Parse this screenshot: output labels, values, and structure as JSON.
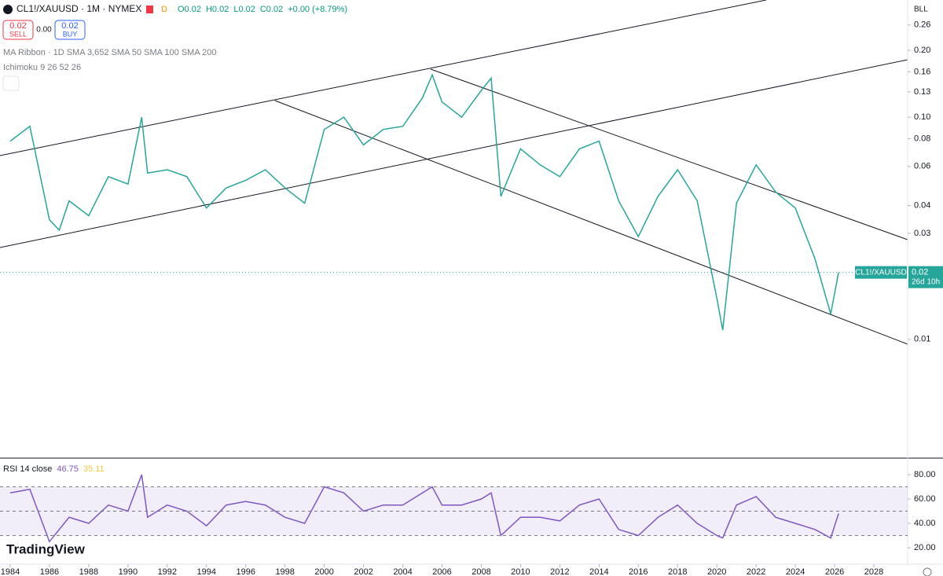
{
  "header": {
    "symbol": "CL1!/XAUUSD · 1M · NYMEX",
    "flag": "D",
    "ohlc": [
      "O0.02",
      "H0.02",
      "L0.02",
      "C0.02",
      "+0.00 (+8.79%)"
    ],
    "sell_price": "0.02",
    "sell": "SELL",
    "spread": "0.00",
    "buy_price": "0.02",
    "buy": "BUY",
    "indicators": [
      "MA Ribbon · 1D SMA 3,652 SMA 50 SMA 100 SMA 200",
      "Ichimoku 9 26 52 26"
    ],
    "axis_unit": "BLL",
    "price_tag": {
      "symbol": "CL1!/XAUUSD",
      "price": "0.02",
      "countdown": "26d 10h"
    },
    "logo": "TradingView"
  },
  "chart_data": [
    {
      "type": "line",
      "log_y": true,
      "color": "#26a69a",
      "x": [
        1984,
        1985,
        1986,
        1986.5,
        1987,
        1988,
        1989,
        1990,
        1990.7,
        1991,
        1992,
        1993,
        1994,
        1995,
        1996,
        1997,
        1998,
        1999,
        2000,
        2001,
        2002,
        2003,
        2004,
        2005,
        2005.5,
        2006,
        2007,
        2008,
        2008.5,
        2009,
        2010,
        2011,
        2012,
        2013,
        2014,
        2015,
        2016,
        2017,
        2018,
        2019,
        2020,
        2020.3,
        2021,
        2022,
        2023,
        2024,
        2025,
        2025.8,
        2026.2
      ],
      "values": [
        0.078,
        0.091,
        0.0345,
        0.031,
        0.042,
        0.036,
        0.054,
        0.05,
        0.1,
        0.056,
        0.058,
        0.054,
        0.039,
        0.048,
        0.052,
        0.058,
        0.048,
        0.041,
        0.088,
        0.1,
        0.075,
        0.088,
        0.091,
        0.122,
        0.155,
        0.117,
        0.1,
        0.132,
        0.15,
        0.044,
        0.072,
        0.061,
        0.054,
        0.072,
        0.078,
        0.042,
        0.029,
        0.044,
        0.058,
        0.042,
        0.0153,
        0.011,
        0.041,
        0.061,
        0.046,
        0.039,
        0.023,
        0.013,
        0.02
      ],
      "xlim": [
        1983.48,
        2029.72
      ],
      "xticks": [
        1984,
        1986,
        1988,
        1990,
        1992,
        1994,
        1996,
        1998,
        2000,
        2002,
        2004,
        2006,
        2008,
        2010,
        2012,
        2014,
        2016,
        2018,
        2020,
        2022,
        2024,
        2026,
        2028
      ],
      "ylim": [
        0.00294,
        0.337
      ],
      "yticks": [
        0.26,
        {
          "value": 0.2,
          "label": "0.20"
        },
        0.16,
        0.13,
        {
          "value": 0.1,
          "label": "0.10"
        },
        0.08,
        0.06,
        0.04,
        0.03,
        0.01
      ]
    },
    {
      "type": "line",
      "title": "RSI 14 close",
      "legend_values": [
        46.75,
        35.11
      ],
      "color": "#7e57c2",
      "levels": [
        30,
        50,
        70
      ],
      "x": [
        1984,
        1985,
        1986,
        1987,
        1988,
        1989,
        1990,
        1990.7,
        1991,
        1992,
        1993,
        1994,
        1995,
        1996,
        1997,
        1998,
        1999,
        2000,
        2001,
        2002,
        2003,
        2004,
        2005,
        2005.5,
        2006,
        2007,
        2008,
        2008.5,
        2009,
        2010,
        2011,
        2012,
        2013,
        2014,
        2015,
        2016,
        2017,
        2018,
        2019,
        2020,
        2020.3,
        2021,
        2022,
        2023,
        2024,
        2025,
        2025.8,
        2026.2
      ],
      "values": [
        65,
        68,
        25,
        45,
        40,
        55,
        50,
        80,
        45,
        55,
        50,
        38,
        55,
        58,
        55,
        45,
        40,
        70,
        65,
        50,
        55,
        55,
        65,
        70,
        55,
        55,
        60,
        65,
        30,
        45,
        45,
        42,
        55,
        60,
        35,
        30,
        45,
        55,
        40,
        30,
        28,
        55,
        62,
        45,
        40,
        35,
        28,
        48
      ],
      "xlim": [
        1983.48,
        2029.72
      ],
      "ylim": [
        7.1,
        92.9
      ],
      "yticks": [
        {
          "value": 80,
          "label": "80.00"
        },
        {
          "value": 60,
          "label": "60.00"
        },
        {
          "value": 40,
          "label": "40.00"
        },
        {
          "value": 20,
          "label": "20.00"
        }
      ]
    }
  ]
}
